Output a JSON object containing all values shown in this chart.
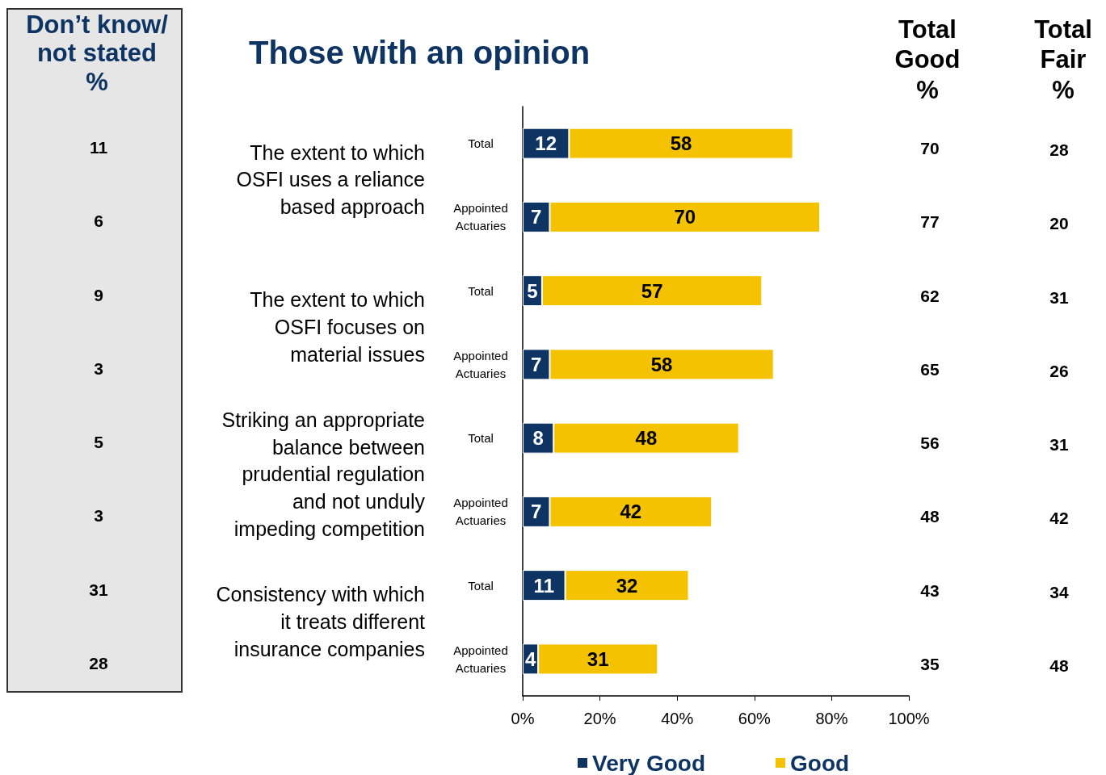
{
  "chart_data": {
    "type": "bar",
    "orientation": "horizontal",
    "stacked": true,
    "title": "Those with an opinion",
    "categories": [
      "Total",
      "Appointed\nActuaries",
      "Total",
      "Appointed\nActuaries",
      "Total",
      "Appointed\nActuaries",
      "Total",
      "Appointed\nActuaries"
    ],
    "series": [
      {
        "name": "Very Good",
        "color": "#0d3463",
        "values": [
          12,
          7,
          5,
          7,
          8,
          7,
          11,
          4
        ]
      },
      {
        "name": "Good",
        "color": "#f5c200",
        "values": [
          58,
          70,
          57,
          58,
          48,
          42,
          32,
          31
        ]
      }
    ],
    "xlim": [
      0,
      100
    ],
    "xticks": [
      {
        "value": 0,
        "label": "0%"
      },
      {
        "value": 20,
        "label": "20%"
      },
      {
        "value": 40,
        "label": "40%"
      },
      {
        "value": 60,
        "label": "60%"
      },
      {
        "value": 80,
        "label": "80%"
      },
      {
        "value": 100,
        "label": "100%"
      }
    ],
    "data_labels": true,
    "annotations": [
      "The extent to which\nOSFI uses a reliance\nbased approach",
      "The extent to which\nOSFI focuses on\nmaterial issues",
      "Striking an appropriate\nbalance between\nprudential regulation\nand not unduly\nimpeding competition",
      "Consistency with which\nit treats different\ninsurance companies",
      "Don’t know/\nnot stated\n%",
      "11",
      "6",
      "9",
      "3",
      "5",
      "3",
      "31",
      "28",
      "Total\nGood\n%",
      "70",
      "77",
      "62",
      "65",
      "56",
      "48",
      "43",
      "35",
      "Total\nFair\n%",
      "28",
      "20",
      "31",
      "26",
      "31",
      "42",
      "34",
      "48"
    ],
    "grid": false,
    "legend": "bottom"
  }
}
